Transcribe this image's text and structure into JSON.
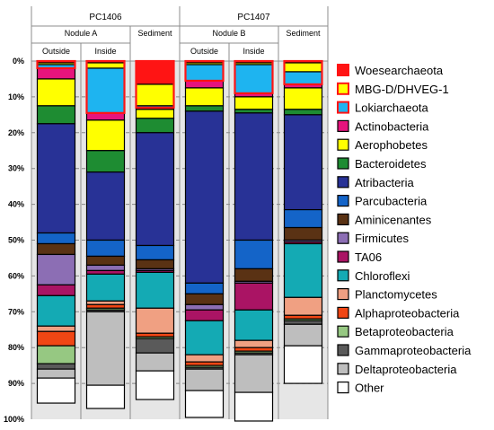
{
  "chart_data": {
    "type": "bar",
    "stacked": true,
    "orientation": "vertical",
    "y_axis": {
      "direction": "top-to-bottom",
      "ylim": [
        0,
        100
      ],
      "ticks": [
        "0%",
        "10%",
        "20%",
        "30%",
        "40%",
        "50%",
        "60%",
        "70%",
        "80%",
        "90%",
        "100%"
      ]
    },
    "gridlines": "dashed-horizontal",
    "legend_position": "right",
    "groups": [
      {
        "label": "PC1406",
        "subgroups": [
          {
            "label": "Nodule A",
            "categories": [
              "Outside",
              "Inside"
            ]
          },
          {
            "label": "Sediment",
            "categories": [
              ""
            ]
          }
        ]
      },
      {
        "label": "PC1407",
        "subgroups": [
          {
            "label": "Nodule B",
            "categories": [
              "Outside",
              "Inside"
            ]
          },
          {
            "label": "Sediment",
            "categories": [
              ""
            ]
          }
        ]
      }
    ],
    "series": [
      {
        "name": "Woesearchaeota",
        "color": "#FF1414",
        "outline": "#FF1414",
        "values": [
          0.5,
          0.5,
          6.5,
          0.5,
          0.5,
          0.5
        ]
      },
      {
        "name": "MBG-D/DHVEG-1",
        "color": "#FFFF00",
        "outline": "#FF1414",
        "values": [
          0.5,
          1.5,
          6.0,
          0.5,
          0.5,
          2.5
        ]
      },
      {
        "name": "Lokiarchaeota",
        "color": "#1EB4F0",
        "outline": "#FF1414",
        "values": [
          1.0,
          12.5,
          0.5,
          4.5,
          8.0,
          3.5
        ]
      },
      {
        "name": "Actinobacteria",
        "color": "#E6147D",
        "outline": null,
        "values": [
          3.0,
          2.0,
          0.5,
          2.0,
          1.0,
          1.0
        ]
      },
      {
        "name": "Aerophobetes",
        "color": "#FFFF00",
        "outline": null,
        "values": [
          7.5,
          8.5,
          2.5,
          5.0,
          3.5,
          6.0
        ]
      },
      {
        "name": "Bacteroidetes",
        "color": "#1E8C32",
        "outline": null,
        "values": [
          5.0,
          6.0,
          4.0,
          1.5,
          1.0,
          1.5
        ]
      },
      {
        "name": "Atribacteria",
        "color": "#283296",
        "outline": null,
        "values": [
          30.5,
          19.0,
          31.5,
          48.0,
          35.5,
          26.5
        ]
      },
      {
        "name": "Parcubacteria",
        "color": "#1464C8",
        "outline": null,
        "values": [
          3.0,
          4.5,
          4.0,
          3.0,
          8.0,
          5.0
        ]
      },
      {
        "name": "Aminicenantes",
        "color": "#5A3214",
        "outline": null,
        "values": [
          3.0,
          2.5,
          2.5,
          3.0,
          3.5,
          3.5
        ]
      },
      {
        "name": "Firmicutes",
        "color": "#8C6EB4",
        "outline": null,
        "values": [
          8.5,
          1.5,
          0.5,
          1.5,
          0.5,
          0.5
        ]
      },
      {
        "name": "TA06",
        "color": "#AA1464",
        "outline": null,
        "values": [
          3.0,
          1.0,
          0.5,
          3.0,
          7.5,
          0.5
        ]
      },
      {
        "name": "Chloroflexi",
        "color": "#14AAB4",
        "outline": null,
        "values": [
          8.5,
          7.5,
          10.0,
          9.5,
          8.5,
          15.0
        ]
      },
      {
        "name": "Planctomycetes",
        "color": "#F0A082",
        "outline": null,
        "values": [
          1.5,
          1.0,
          7.0,
          2.0,
          2.0,
          5.0
        ]
      },
      {
        "name": "Alphaproteobacteria",
        "color": "#F04614",
        "outline": null,
        "values": [
          4.0,
          1.0,
          1.0,
          1.0,
          1.0,
          1.0
        ]
      },
      {
        "name": "Betaproteobacteria",
        "color": "#96C882",
        "outline": null,
        "values": [
          5.0,
          0.5,
          0.5,
          0.5,
          0.5,
          0.5
        ]
      },
      {
        "name": "Gammaproteobacteria",
        "color": "#5A5A5A",
        "outline": null,
        "values": [
          1.5,
          0.5,
          4.0,
          0.5,
          0.5,
          1.0
        ]
      },
      {
        "name": "Deltaproteobacteria",
        "color": "#BEBEBE",
        "outline": null,
        "values": [
          2.5,
          20.5,
          5.0,
          6.0,
          10.5,
          6.0
        ]
      },
      {
        "name": "Other",
        "color": "#FFFFFF",
        "outline": null,
        "values": [
          7.0,
          6.5,
          8.0,
          7.5,
          8.0,
          10.5
        ]
      }
    ],
    "colors": {
      "plot_background": "#E6E6E6",
      "bar_outline": "#000000",
      "gridline": "#888888"
    }
  }
}
